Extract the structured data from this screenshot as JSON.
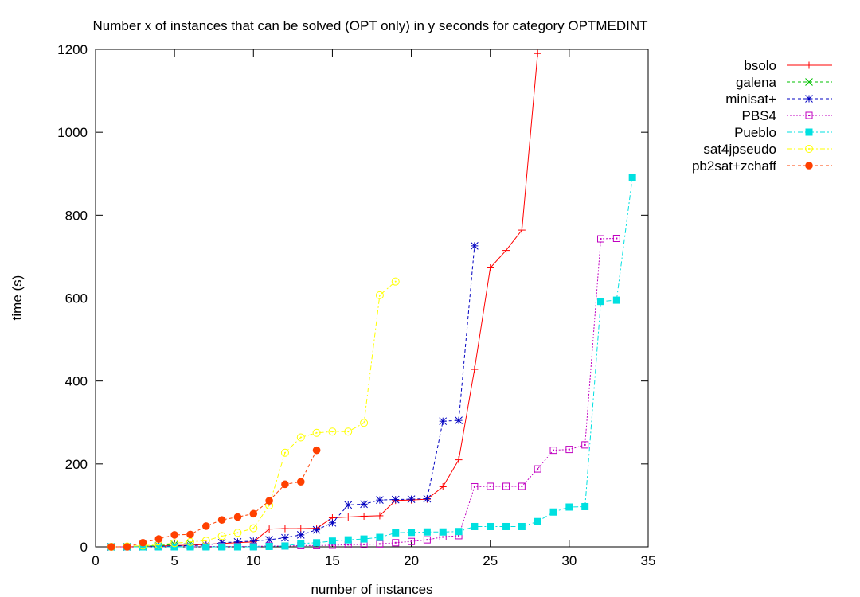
{
  "chart_data": {
    "type": "line",
    "title": "Number x of instances that can be solved (OPT only) in y seconds for category OPTMEDINT",
    "xlabel": "number of instances",
    "ylabel": "time (s)",
    "xlim": [
      0,
      35
    ],
    "ylim": [
      0,
      1200
    ],
    "xticks": [
      "0",
      "5",
      "10",
      "15",
      "20",
      "25",
      "30",
      "35"
    ],
    "yticks": [
      "0",
      "200",
      "400",
      "600",
      "800",
      "1000",
      "1200"
    ],
    "grid": false,
    "legend_position": "outside-right",
    "series": [
      {
        "name": "bsolo",
        "color": "#ff0000",
        "marker": "plus",
        "dash": "solid",
        "x": [
          1,
          2,
          3,
          4,
          5,
          6,
          7,
          8,
          9,
          10,
          11,
          12,
          13,
          14,
          15,
          16,
          17,
          18,
          19,
          20,
          21,
          22,
          23,
          24,
          25,
          26,
          27,
          28
        ],
        "y": [
          0,
          0,
          1,
          2,
          3,
          4,
          6,
          8,
          10,
          12,
          43,
          44,
          44,
          45,
          70,
          72,
          74,
          75,
          112,
          113,
          115,
          145,
          210,
          428,
          673,
          715,
          764,
          1190
        ]
      },
      {
        "name": "galena",
        "color": "#00c000",
        "marker": "cross",
        "dash": "dashed",
        "x": [
          1,
          2,
          3,
          4,
          5,
          6
        ],
        "y": [
          0,
          0,
          1,
          3,
          6,
          8
        ]
      },
      {
        "name": "minisat+",
        "color": "#0000c0",
        "marker": "star",
        "dash": "dashed",
        "x": [
          1,
          2,
          3,
          4,
          5,
          6,
          7,
          8,
          9,
          10,
          11,
          12,
          13,
          14,
          15,
          16,
          17,
          18,
          19,
          20,
          21,
          22,
          23,
          24
        ],
        "y": [
          0,
          0,
          0,
          1,
          2,
          3,
          4,
          10,
          12,
          14,
          17,
          22,
          29,
          41,
          58,
          101,
          103,
          113,
          114,
          115,
          116,
          303,
          305,
          726
        ]
      },
      {
        "name": "PBS4",
        "color": "#c000c0",
        "marker": "open-square",
        "dash": "dotted",
        "x": [
          1,
          2,
          3,
          4,
          5,
          6,
          7,
          8,
          9,
          10,
          11,
          12,
          13,
          14,
          15,
          16,
          17,
          18,
          19,
          20,
          21,
          22,
          23,
          24,
          25,
          26,
          27,
          28,
          29,
          30,
          31,
          32,
          33
        ],
        "y": [
          0,
          0,
          0,
          0,
          0,
          0,
          1,
          1,
          1,
          1,
          2,
          2,
          3,
          3,
          4,
          5,
          6,
          7,
          10,
          13,
          17,
          24,
          27,
          145,
          146,
          146,
          146,
          188,
          233,
          235,
          246,
          743,
          744
        ]
      },
      {
        "name": "Pueblo",
        "color": "#00e0e0",
        "marker": "filled-square",
        "dash": "dashdot",
        "x": [
          1,
          2,
          3,
          4,
          5,
          6,
          7,
          8,
          9,
          10,
          11,
          12,
          13,
          14,
          15,
          16,
          17,
          18,
          19,
          20,
          21,
          22,
          23,
          24,
          25,
          26,
          27,
          28,
          29,
          30,
          31,
          32,
          33,
          34
        ],
        "y": [
          0,
          0,
          0,
          0,
          0,
          0,
          0,
          0,
          0,
          0,
          1,
          2,
          8,
          10,
          14,
          17,
          19,
          23,
          34,
          35,
          36,
          36,
          37,
          49,
          49,
          49,
          49,
          61,
          84,
          96,
          97,
          592,
          595,
          891
        ]
      },
      {
        "name": "sat4jpseudo",
        "color": "#ffff00",
        "marker": "open-circle",
        "dash": "dashdot",
        "x": [
          1,
          2,
          3,
          4,
          5,
          6,
          7,
          8,
          9,
          10,
          11,
          12,
          13,
          14,
          15,
          16,
          17,
          18,
          19
        ],
        "y": [
          0,
          1,
          3,
          5,
          9,
          12,
          15,
          26,
          34,
          45,
          100,
          227,
          264,
          275,
          278,
          278,
          299,
          607,
          640
        ]
      },
      {
        "name": "pb2sat+zchaff",
        "color": "#ff4000",
        "marker": "filled-circle",
        "dash": "dashed",
        "x": [
          1,
          2,
          3,
          4,
          5,
          6,
          7,
          8,
          9,
          10,
          11,
          12,
          13,
          14
        ],
        "y": [
          0,
          0,
          10,
          19,
          29,
          30,
          50,
          65,
          72,
          80,
          111,
          151,
          157,
          233
        ]
      }
    ]
  }
}
